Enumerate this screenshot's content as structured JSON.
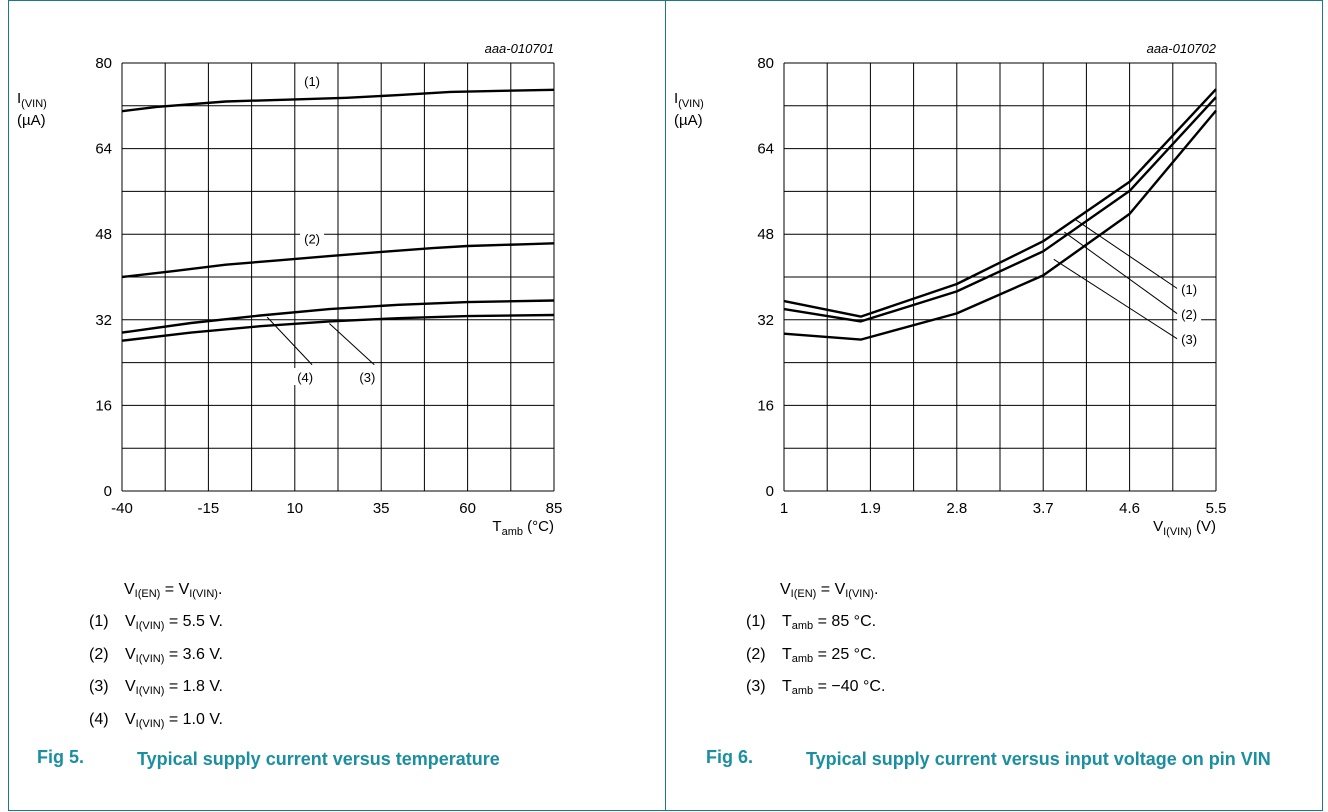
{
  "chart_data": [
    {
      "type": "line",
      "code": "aaa-010701",
      "ylabel_main": "I",
      "ylabel_sub": "(VIN)",
      "yunit": "(µA)",
      "xlabel_main": "T",
      "xlabel_sub": "amb",
      "xunit": " (°C)",
      "xlim": [
        -40,
        85
      ],
      "ylim": [
        0,
        80
      ],
      "xticks": [
        -40,
        -15,
        10,
        35,
        60,
        85
      ],
      "xtick_labels": [
        "-40",
        "-15",
        "10",
        "35",
        "60",
        "85"
      ],
      "yticks": [
        0,
        16,
        32,
        48,
        64,
        80
      ],
      "ytick_labels": [
        "0",
        "16",
        "32",
        "48",
        "64",
        "80"
      ],
      "series": [
        {
          "name": "(1)",
          "x": [
            -40,
            -30,
            -10,
            10,
            25,
            40,
            55,
            70,
            85
          ],
          "y": [
            71,
            71.8,
            72.8,
            73.2,
            73.5,
            74,
            74.6,
            74.8,
            75
          ]
        },
        {
          "name": "(2)",
          "x": [
            -40,
            -25,
            -10,
            5,
            20,
            35,
            50,
            60,
            75,
            85
          ],
          "y": [
            40,
            41.1,
            42.3,
            43.1,
            43.9,
            44.7,
            45.4,
            45.8,
            46.1,
            46.3
          ]
        },
        {
          "name": "(3)",
          "x": [
            -40,
            -20,
            0,
            20,
            40,
            60,
            85
          ],
          "y": [
            28.1,
            29.6,
            30.8,
            31.7,
            32.3,
            32.7,
            32.9
          ]
        },
        {
          "name": "(4)",
          "x": [
            -40,
            -20,
            0,
            20,
            40,
            60,
            85
          ],
          "y": [
            29.6,
            31.4,
            32.8,
            34,
            34.8,
            35.3,
            35.6
          ]
        }
      ],
      "labels": [
        {
          "text": "(1)",
          "x": 15,
          "y": 76.6
        },
        {
          "text": "(2)",
          "x": 15,
          "y": 47.2
        },
        {
          "text": "(4)",
          "x": 13,
          "y": 21.3
        },
        {
          "text": "(3)",
          "x": 31,
          "y": 21.3
        }
      ],
      "leaders": [
        {
          "x1": 2,
          "y1": 32.5,
          "x2": 15,
          "y2": 23.6
        },
        {
          "x1": 20,
          "y1": 31.3,
          "x2": 33,
          "y2": 23.6
        }
      ]
    },
    {
      "type": "line",
      "code": "aaa-010702",
      "ylabel_main": "I",
      "ylabel_sub": "(VIN)",
      "yunit": "(µA)",
      "xlabel_main": "V",
      "xlabel_sub": "I(VIN)",
      "xunit": " (V)",
      "xlim": [
        1,
        5.5
      ],
      "ylim": [
        0,
        80
      ],
      "xticks": [
        1,
        1.9,
        2.8,
        3.7,
        4.6,
        5.5
      ],
      "xtick_labels": [
        "1",
        "1.9",
        "2.8",
        "3.7",
        "4.6",
        "5.5"
      ],
      "yticks": [
        0,
        16,
        32,
        48,
        64,
        80
      ],
      "ytick_labels": [
        "0",
        "16",
        "32",
        "48",
        "64",
        "80"
      ],
      "series": [
        {
          "name": "(1)",
          "x": [
            1,
            1.8,
            2.8,
            3.7,
            4.6,
            5.5
          ],
          "y": [
            35.5,
            32.6,
            38.7,
            46.7,
            57.8,
            75.1
          ]
        },
        {
          "name": "(2)",
          "x": [
            1,
            1.8,
            2.8,
            3.7,
            4.6,
            5.5
          ],
          "y": [
            34,
            31.7,
            37.3,
            44.8,
            56.1,
            73.6
          ]
        },
        {
          "name": "(3)",
          "x": [
            1,
            1.8,
            2.8,
            3.7,
            4.6,
            5.5
          ],
          "y": [
            29.4,
            28.3,
            33.2,
            40.3,
            51.8,
            71.1
          ]
        }
      ],
      "labels": [
        {
          "text": "(1)",
          "x": 5.22,
          "y": 37.8
        },
        {
          "text": "(2)",
          "x": 5.22,
          "y": 33.1
        },
        {
          "text": "(3)",
          "x": 5.22,
          "y": 28.4
        }
      ],
      "leaders": [
        {
          "x1": 4.03,
          "y1": 50.8,
          "x2": 5.1,
          "y2": 37.8
        },
        {
          "x1": 3.92,
          "y1": 48.4,
          "x2": 5.1,
          "y2": 33.1
        },
        {
          "x1": 3.81,
          "y1": 43.3,
          "x2": 5.1,
          "y2": 28.4
        }
      ]
    }
  ],
  "left_notes": {
    "condition": {
      "a": "V",
      "a_sub": "I(EN)",
      "mid": " = V",
      "b_sub": "I(VIN)",
      "end": "."
    },
    "items": [
      {
        "num": "(1)",
        "main": "V",
        "sub": "I(VIN)",
        "value": " = 5.5 V."
      },
      {
        "num": "(2)",
        "main": "V",
        "sub": "I(VIN)",
        "value": " = 3.6 V."
      },
      {
        "num": "(3)",
        "main": "V",
        "sub": "I(VIN)",
        "value": " = 1.8 V."
      },
      {
        "num": "(4)",
        "main": "V",
        "sub": "I(VIN)",
        "value": " = 1.0 V."
      }
    ],
    "fig": "Fig 5.",
    "title": "Typical supply current versus temperature"
  },
  "right_notes": {
    "condition": {
      "a": "V",
      "a_sub": "I(EN)",
      "mid": " = V",
      "b_sub": "I(VIN)",
      "end": "."
    },
    "items": [
      {
        "num": "(1)",
        "main": "T",
        "sub": "amb",
        "value": " = 85 °C."
      },
      {
        "num": "(2)",
        "main": "T",
        "sub": "amb",
        "value": " = 25 °C."
      },
      {
        "num": "(3)",
        "main": "T",
        "sub": "amb",
        "value": " = −40 °C."
      }
    ],
    "fig": "Fig 6.",
    "title": "Typical supply current versus input voltage on pin VIN"
  },
  "colors": {
    "accent": "#1a8fa0",
    "border": "#1a7a8a",
    "grid": "#000000",
    "line": "#000000"
  }
}
